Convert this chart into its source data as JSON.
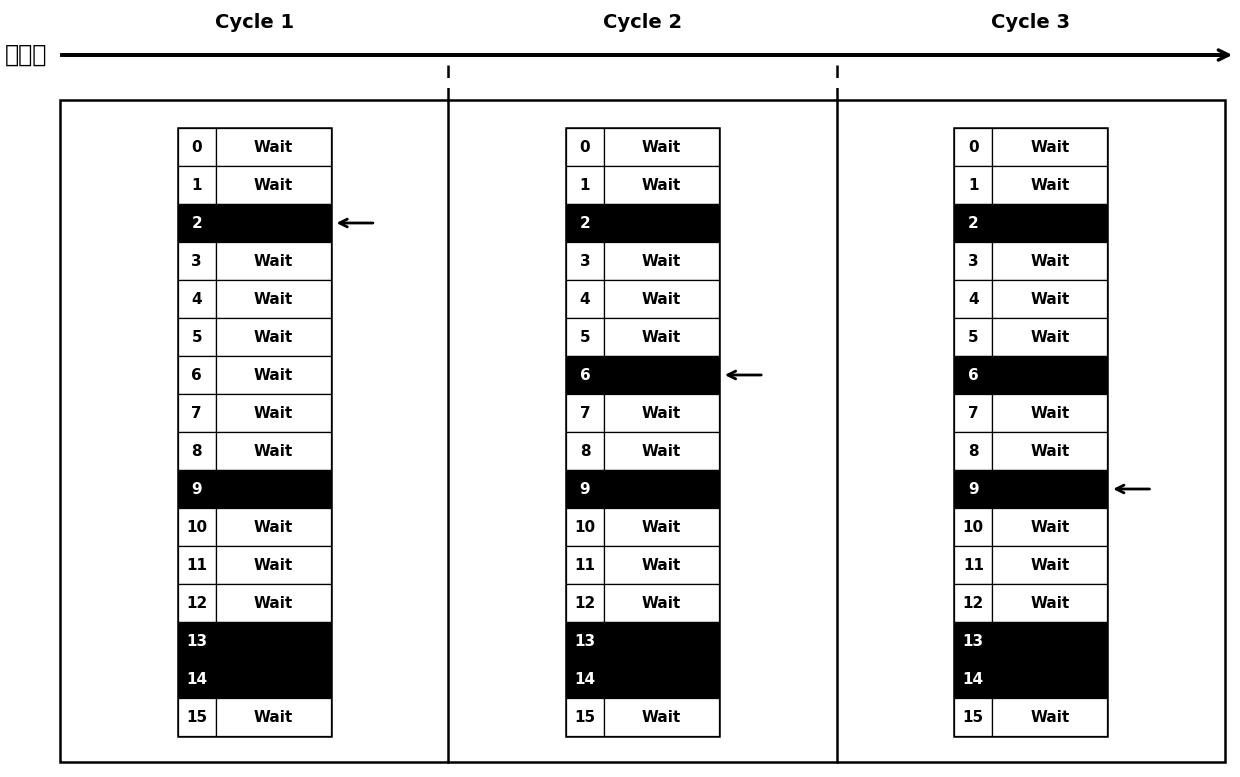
{
  "title_axis": "时间轴",
  "cycle_labels": [
    "Cycle 1",
    "Cycle 2",
    "Cycle 3"
  ],
  "num_rows": 16,
  "cycles": [
    {
      "black_rows": [
        2,
        9,
        13,
        14
      ],
      "arrow_row": 2
    },
    {
      "black_rows": [
        2,
        6,
        9,
        13,
        14
      ],
      "arrow_row": 6
    },
    {
      "black_rows": [
        2,
        6,
        9,
        13,
        14
      ],
      "arrow_row": 9
    }
  ],
  "bg_color": "#ffffff",
  "black_color": "#000000",
  "white_color": "#ffffff",
  "wait_text": "Wait",
  "figw": 12.4,
  "figh": 7.77,
  "dpi": 100
}
